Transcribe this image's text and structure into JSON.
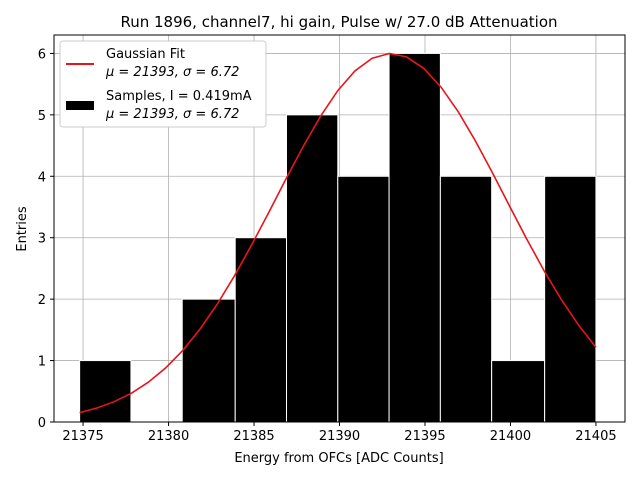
{
  "chart_data": {
    "type": "bar",
    "title": "Run 1896, channel7, hi gain, Pulse w/ 27.0 dB Attenuation",
    "xlabel": "Energy from OFCs [ADC Counts]",
    "ylabel": "Entries",
    "xlim": [
      21373.3,
      21406.7
    ],
    "ylim": [
      0,
      6.3
    ],
    "grid": true,
    "legend_position": "top-left",
    "x_ticks": [
      "21375",
      "21380",
      "21385",
      "21390",
      "21395",
      "21400",
      "21405"
    ],
    "x_tick_values": [
      21375,
      21380,
      21385,
      21390,
      21395,
      21400,
      21405
    ],
    "y_ticks": [
      "0",
      "1",
      "2",
      "3",
      "4",
      "5",
      "6"
    ],
    "y_tick_values": [
      0,
      1,
      2,
      3,
      4,
      5,
      6
    ],
    "histogram": {
      "name": "Samples, I = 0.419mA",
      "stats": "μ = 21393, σ = 6.72",
      "color": "#000000",
      "edge_color": "#ffffff",
      "bin_edges": [
        21374.8,
        21377.8,
        21380.8,
        21383.9,
        21386.9,
        21389.9,
        21392.9,
        21395.9,
        21398.9,
        21402.0,
        21405.0
      ],
      "counts": [
        1,
        0,
        2,
        3,
        5,
        4,
        6,
        4,
        1,
        4
      ]
    },
    "fit": {
      "name": "Gaussian Fit",
      "stats": "μ = 21393, σ = 6.72",
      "color": "#e8141c",
      "mean": 21393,
      "sigma": 6.72,
      "amplitude": 6.0,
      "x_range": [
        21374.8,
        21405.0
      ]
    }
  }
}
